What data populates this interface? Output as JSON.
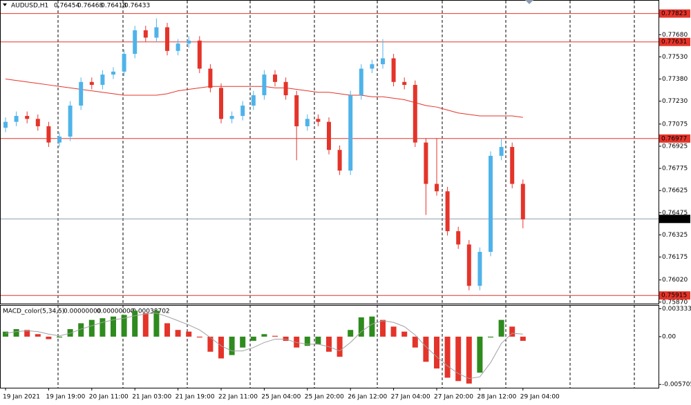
{
  "chart_data": {
    "type": "candlestick",
    "title": "AUDUSD,H1",
    "header_values": [
      0.76454,
      0.76468,
      0.76418,
      0.76433
    ],
    "categories": [
      "19 Jan 2021",
      null,
      null,
      null,
      "19 Jan 19:00",
      null,
      null,
      null,
      "20 Jan 11:00",
      null,
      null,
      null,
      "21 Jan 03:00",
      null,
      null,
      null,
      "21 Jan 19:00",
      null,
      null,
      null,
      "22 Jan 11:00",
      null,
      null,
      null,
      "25 Jan 04:00",
      null,
      null,
      null,
      "25 Jan 20:00",
      null,
      null,
      null,
      "26 Jan 12:00",
      null,
      null,
      null,
      "27 Jan 04:00",
      null,
      null,
      null,
      "27 Jan 20:00",
      null,
      null,
      null,
      "28 Jan 12:00",
      null,
      null,
      null,
      "29 Jan 04:00"
    ],
    "open": [
      0.7705,
      0.7709,
      0.7713,
      0.7711,
      0.7706,
      0.7695,
      0.7699,
      0.772,
      0.7736,
      0.7734,
      0.7741,
      0.7743,
      0.7755,
      0.7771,
      0.7766,
      0.7773,
      0.7757,
      0.7762,
      0.7764,
      0.7745,
      0.7732,
      0.7711,
      0.7713,
      0.772,
      0.7727,
      0.7741,
      0.7736,
      0.7727,
      0.7706,
      0.7711,
      0.7709,
      0.769,
      0.7676,
      0.7727,
      0.7745,
      0.7748,
      0.7752,
      0.7736,
      0.7734,
      0.7695,
      0.7667,
      0.7662,
      0.7635,
      0.7626,
      0.7598,
      0.7621,
      0.7686,
      0.7692,
      0.7667
    ],
    "high": [
      0.7712,
      0.7716,
      0.7716,
      0.7714,
      0.7709,
      0.7702,
      0.7723,
      0.7739,
      0.7739,
      0.7744,
      0.7746,
      0.7758,
      0.7774,
      0.7774,
      0.7779,
      0.7776,
      0.7765,
      0.7767,
      0.7767,
      0.7748,
      0.7735,
      0.7716,
      0.7723,
      0.773,
      0.7744,
      0.7744,
      0.7739,
      0.773,
      0.7714,
      0.7714,
      0.7712,
      0.7693,
      0.773,
      0.7748,
      0.7751,
      0.7765,
      0.7755,
      0.7739,
      0.7737,
      0.7698,
      0.7698,
      0.7665,
      0.7638,
      0.7629,
      0.7624,
      0.7689,
      0.7698,
      0.7695,
      0.767
    ],
    "low": [
      0.7702,
      0.7706,
      0.7708,
      0.7703,
      0.7692,
      0.7692,
      0.7696,
      0.7717,
      0.7731,
      0.7731,
      0.7738,
      0.774,
      0.7752,
      0.7763,
      0.7763,
      0.7754,
      0.7754,
      0.7759,
      0.7742,
      0.7729,
      0.7708,
      0.7708,
      0.771,
      0.7717,
      0.7724,
      0.7733,
      0.7724,
      0.7683,
      0.7703,
      0.7706,
      0.7687,
      0.7673,
      0.7673,
      0.7724,
      0.7742,
      0.7745,
      0.7733,
      0.7731,
      0.7692,
      0.7646,
      0.7659,
      0.7632,
      0.7623,
      0.7595,
      0.7595,
      0.7618,
      0.7683,
      0.7664,
      0.7637
    ],
    "close": [
      0.7709,
      0.7713,
      0.7711,
      0.7706,
      0.7695,
      0.7699,
      0.772,
      0.7736,
      0.7734,
      0.7741,
      0.7743,
      0.7755,
      0.7771,
      0.7766,
      0.7773,
      0.7757,
      0.7762,
      0.7764,
      0.7745,
      0.7732,
      0.7711,
      0.7713,
      0.772,
      0.7727,
      0.7741,
      0.7736,
      0.7727,
      0.7706,
      0.7711,
      0.7709,
      0.769,
      0.7676,
      0.7727,
      0.7745,
      0.7748,
      0.7752,
      0.7736,
      0.7734,
      0.7695,
      0.7667,
      0.7662,
      0.7635,
      0.7626,
      0.7598,
      0.7621,
      0.7686,
      0.7692,
      0.7667,
      0.7643
    ],
    "up_color": "#4fb3ea",
    "down_color": "#e4342a",
    "moving_average": {
      "color": "#e4342a",
      "values": [
        0.7738,
        0.7737,
        0.7736,
        0.7735,
        0.7734,
        0.7733,
        0.7732,
        0.7731,
        0.773,
        0.7729,
        0.7728,
        0.7727,
        0.7727,
        0.7727,
        0.7727,
        0.7728,
        0.773,
        0.7731,
        0.7732,
        0.7733,
        0.7733,
        0.7733,
        0.7733,
        0.7733,
        0.7733,
        0.7732,
        0.7732,
        0.7731,
        0.773,
        0.7729,
        0.7729,
        0.7728,
        0.7727,
        0.7727,
        0.7726,
        0.7726,
        0.7725,
        0.7724,
        0.7722,
        0.772,
        0.7719,
        0.7717,
        0.7715,
        0.7714,
        0.7713,
        0.7713,
        0.7713,
        0.7713,
        0.7712
      ]
    },
    "levels": [
      {
        "value": 0.77823,
        "color": "#e4342a"
      },
      {
        "value": 0.77631,
        "color": "#e4342a"
      },
      {
        "value": 0.76977,
        "color": "#e4342a"
      },
      {
        "value": 0.75915,
        "color": "#e4342a"
      }
    ],
    "current_price": {
      "value": 0.76433,
      "color": "#8a9bb0"
    },
    "ylim": [
      0.7586,
      0.7791
    ],
    "yticks": [
      {
        "value": 0.7768,
        "label": "0.77680"
      },
      {
        "value": 0.7753,
        "label": "0.77530"
      },
      {
        "value": 0.7738,
        "label": "0.77380"
      },
      {
        "value": 0.7723,
        "label": "0.77230"
      },
      {
        "value": 0.77075,
        "label": "0.77075"
      },
      {
        "value": 0.76925,
        "label": "0.76925"
      },
      {
        "value": 0.76775,
        "label": "0.76775"
      },
      {
        "value": 0.76625,
        "label": "0.76625"
      },
      {
        "value": 0.76475,
        "label": "0.76475"
      },
      {
        "value": 0.76325,
        "label": "0.76325"
      },
      {
        "value": 0.76175,
        "label": "0.76175"
      },
      {
        "value": 0.7602,
        "label": "0.76020"
      },
      {
        "value": 0.7587,
        "label": "0.75870"
      }
    ],
    "macd": {
      "title": "MACD_color(5,34,5)",
      "header_values": [
        0,
        0,
        -0.00038702
      ],
      "header_value_labels": [
        "0.00000000",
        "0.00000000",
        "-0.00038702"
      ],
      "rise_color": "#2e8b1e",
      "fall_color": "#e4342a",
      "signal_color": "#a0a0a0",
      "values": [
        0.0006,
        0.0009,
        0.0008,
        0.0003,
        -0.0003,
        -0.0001,
        0.0009,
        0.0016,
        0.002,
        0.0022,
        0.0024,
        0.0026,
        0.0031,
        0.0028,
        0.0031,
        0.0016,
        0.0008,
        0.0006,
        -0.0001,
        -0.0018,
        -0.0026,
        -0.0022,
        -0.0013,
        -0.0005,
        0.0003,
        0.0001,
        -0.0005,
        -0.0013,
        -0.0011,
        -0.0009,
        -0.0018,
        -0.0024,
        0.0008,
        0.0023,
        0.0024,
        0.002,
        0.0012,
        0.0006,
        -0.0013,
        -0.003,
        -0.0038,
        -0.0049,
        -0.0053,
        -0.0056,
        -0.0043,
        -0.0001,
        0.002,
        0.0012,
        -0.0005
      ],
      "signal": [
        0.0004,
        0.0006,
        0.0007,
        0.0006,
        0.0003,
        0.0001,
        0.0004,
        0.0009,
        0.0013,
        0.0017,
        0.002,
        0.0022,
        0.0025,
        0.0027,
        0.0028,
        0.0024,
        0.0019,
        0.0014,
        0.0008,
        -0.0001,
        -0.0011,
        -0.0017,
        -0.0017,
        -0.0013,
        -0.0007,
        -0.0003,
        -0.0003,
        -0.0007,
        -0.0009,
        -0.0009,
        -0.0012,
        -0.0017,
        -0.0007,
        0.0006,
        0.0015,
        0.0019,
        0.0017,
        0.0012,
        0.0002,
        -0.0012,
        -0.0024,
        -0.0035,
        -0.0044,
        -0.005,
        -0.0048,
        -0.0031,
        -0.0008,
        0.0004,
        0.0003
      ],
      "ylim": [
        -0.0061,
        0.0037
      ],
      "yticks": [
        0.0033334,
        {
          "value": 0,
          "label": "0.00"
        },
        -0.005705
      ]
    }
  }
}
